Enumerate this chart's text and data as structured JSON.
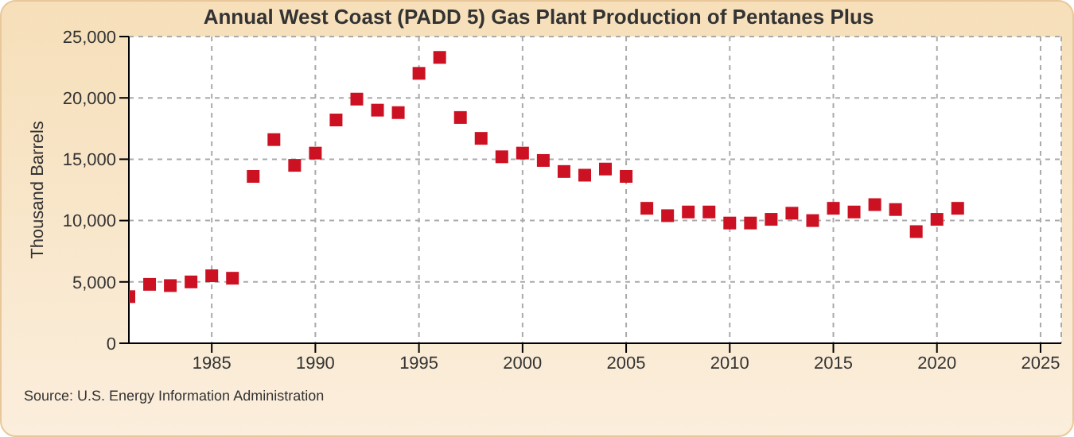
{
  "chart_data": {
    "type": "scatter",
    "title": "Annual West Coast (PADD 5) Gas Plant Production of Pentanes Plus",
    "ylabel": "Thousand Barrels",
    "x": [
      1981,
      1982,
      1983,
      1984,
      1985,
      1986,
      1987,
      1988,
      1989,
      1990,
      1991,
      1992,
      1993,
      1994,
      1995,
      1996,
      1997,
      1998,
      1999,
      2000,
      2001,
      2002,
      2003,
      2004,
      2005,
      2006,
      2007,
      2008,
      2009,
      2010,
      2011,
      2012,
      2013,
      2014,
      2015,
      2016,
      2017,
      2018,
      2019,
      2020,
      2021
    ],
    "series": [
      {
        "color": "#cc1122",
        "values": [
          3800,
          4800,
          4700,
          5000,
          5500,
          5300,
          13600,
          16600,
          14500,
          15500,
          18200,
          19900,
          19000,
          18800,
          22000,
          23300,
          18400,
          16700,
          15200,
          15500,
          14900,
          14000,
          13700,
          14200,
          13600,
          11000,
          10400,
          10700,
          10700,
          9800,
          9800,
          10100,
          10600,
          10000,
          11000,
          10700,
          11300,
          10900,
          9100,
          10100,
          11000
        ]
      }
    ],
    "xlim": [
      1981,
      2026
    ],
    "xticks": [
      1985,
      1990,
      1995,
      2000,
      2005,
      2010,
      2015,
      2020,
      2025
    ],
    "ylim": [
      0,
      25000
    ],
    "yticks": [
      {
        "value": 0,
        "label": "0"
      },
      {
        "value": 5000,
        "label": "5,000"
      },
      {
        "value": 10000,
        "label": "10,000"
      },
      {
        "value": 15000,
        "label": "15,000"
      },
      {
        "value": 20000,
        "label": "20,000"
      },
      {
        "value": 25000,
        "label": "25,000"
      }
    ],
    "grid": true,
    "marker": "square",
    "legend": false,
    "annotations": [
      "Source: U.S. Energy Information Administration"
    ]
  }
}
